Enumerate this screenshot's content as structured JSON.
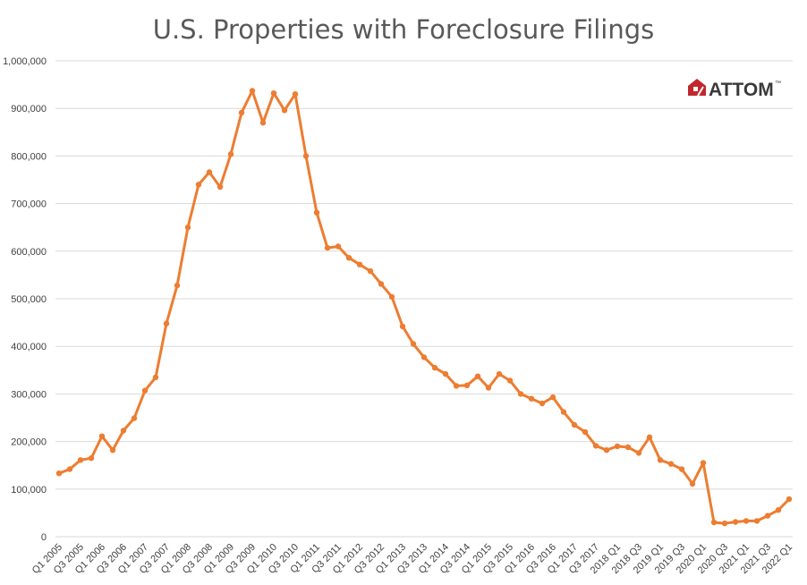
{
  "chart_data": {
    "type": "line",
    "title": "U.S. Properties with Foreclosure Filings",
    "xlabel": "",
    "ylabel": "",
    "ylim": [
      0,
      1000000
    ],
    "yticks": [
      "0",
      "100,000",
      "200,000",
      "300,000",
      "400,000",
      "500,000",
      "600,000",
      "700,000",
      "800,000",
      "900,000",
      "1,000,000"
    ],
    "grid": true,
    "legend": "none",
    "categories": [
      "Q1 2005",
      "Q2 2005",
      "Q3 2005",
      "Q4 2005",
      "Q1 2006",
      "Q2 2006",
      "Q3 2006",
      "Q4 2006",
      "Q1 2007",
      "Q2 2007",
      "Q3 2007",
      "Q4 2007",
      "Q1 2008",
      "Q2 2008",
      "Q3 2008",
      "Q4 2008",
      "Q1 2009",
      "Q2 2009",
      "Q3 2009",
      "Q4 2009",
      "Q1 2010",
      "Q2 2010",
      "Q3 2010",
      "Q4 2010",
      "Q1 2011",
      "Q2 2011",
      "Q3 2011",
      "Q4 2011",
      "Q1 2012",
      "Q2 2012",
      "Q3 2012",
      "Q4 2012",
      "Q1 2013",
      "Q2 2013",
      "Q3 2013",
      "Q4 2013",
      "Q1 2014",
      "Q2 2014",
      "Q3 2014",
      "Q4 2014",
      "Q1 2015",
      "Q2 2015",
      "Q3 2015",
      "Q4 2015",
      "Q1 2016",
      "Q2 2016",
      "Q3 2016",
      "Q4 2016",
      "Q1 2017",
      "Q2 2017",
      "Q3 2017",
      "Q4 2017",
      "2018 Q1",
      "2018 Q2",
      "2018 Q3",
      "2018 Q4",
      "2019 Q1",
      "2019 Q2",
      "2019 Q3",
      "2019 Q4",
      "2020 Q1",
      "2020 Q2",
      "2020 Q3",
      "2020 Q4",
      "2021 Q1",
      "2021 Q2",
      "2021 Q3",
      "2021 Q4",
      "2022 Q1"
    ],
    "tick_labels": [
      "Q1 2005",
      "Q3 2005",
      "Q1 2006",
      "Q3 2006",
      "Q1 2007",
      "Q3 2007",
      "Q1 2008",
      "Q3 2008",
      "Q1 2009",
      "Q3 2009",
      "Q1 2010",
      "Q3 2010",
      "Q1 2011",
      "Q3 2011",
      "Q1 2012",
      "Q3 2012",
      "Q1 2013",
      "Q3 2013",
      "Q1 2014",
      "Q3 2014",
      "Q1 2015",
      "Q3 2015",
      "Q1 2016",
      "Q3 2016",
      "Q1 2017",
      "Q3 2017",
      "2018 Q1",
      "2018 Q3",
      "2019 Q1",
      "2019 Q3",
      "2020 Q1",
      "2020 Q3",
      "2021 Q1",
      "2021 Q3",
      "2022 Q1"
    ],
    "series": [
      {
        "color": "#ed7d31",
        "values": [
          133000,
          142000,
          161000,
          165000,
          211000,
          182000,
          223000,
          249000,
          307000,
          335000,
          448000,
          528000,
          650000,
          740000,
          766000,
          735000,
          804000,
          891000,
          937000,
          870000,
          932000,
          896000,
          930000,
          800000,
          681000,
          607000,
          610000,
          586000,
          572000,
          558000,
          531000,
          504000,
          442000,
          405000,
          377000,
          355000,
          342000,
          317000,
          318000,
          337000,
          313000,
          342000,
          328000,
          300000,
          290000,
          280000,
          293000,
          262000,
          235000,
          220000,
          191000,
          182000,
          190000,
          188000,
          176000,
          209000,
          161000,
          153000,
          142000,
          111000,
          155000,
          30000,
          28000,
          31000,
          33000,
          33000,
          44000,
          56000,
          79000
        ]
      }
    ]
  },
  "logo": {
    "text": "ATTOM",
    "trademark": "™",
    "color": "#c0282d"
  }
}
